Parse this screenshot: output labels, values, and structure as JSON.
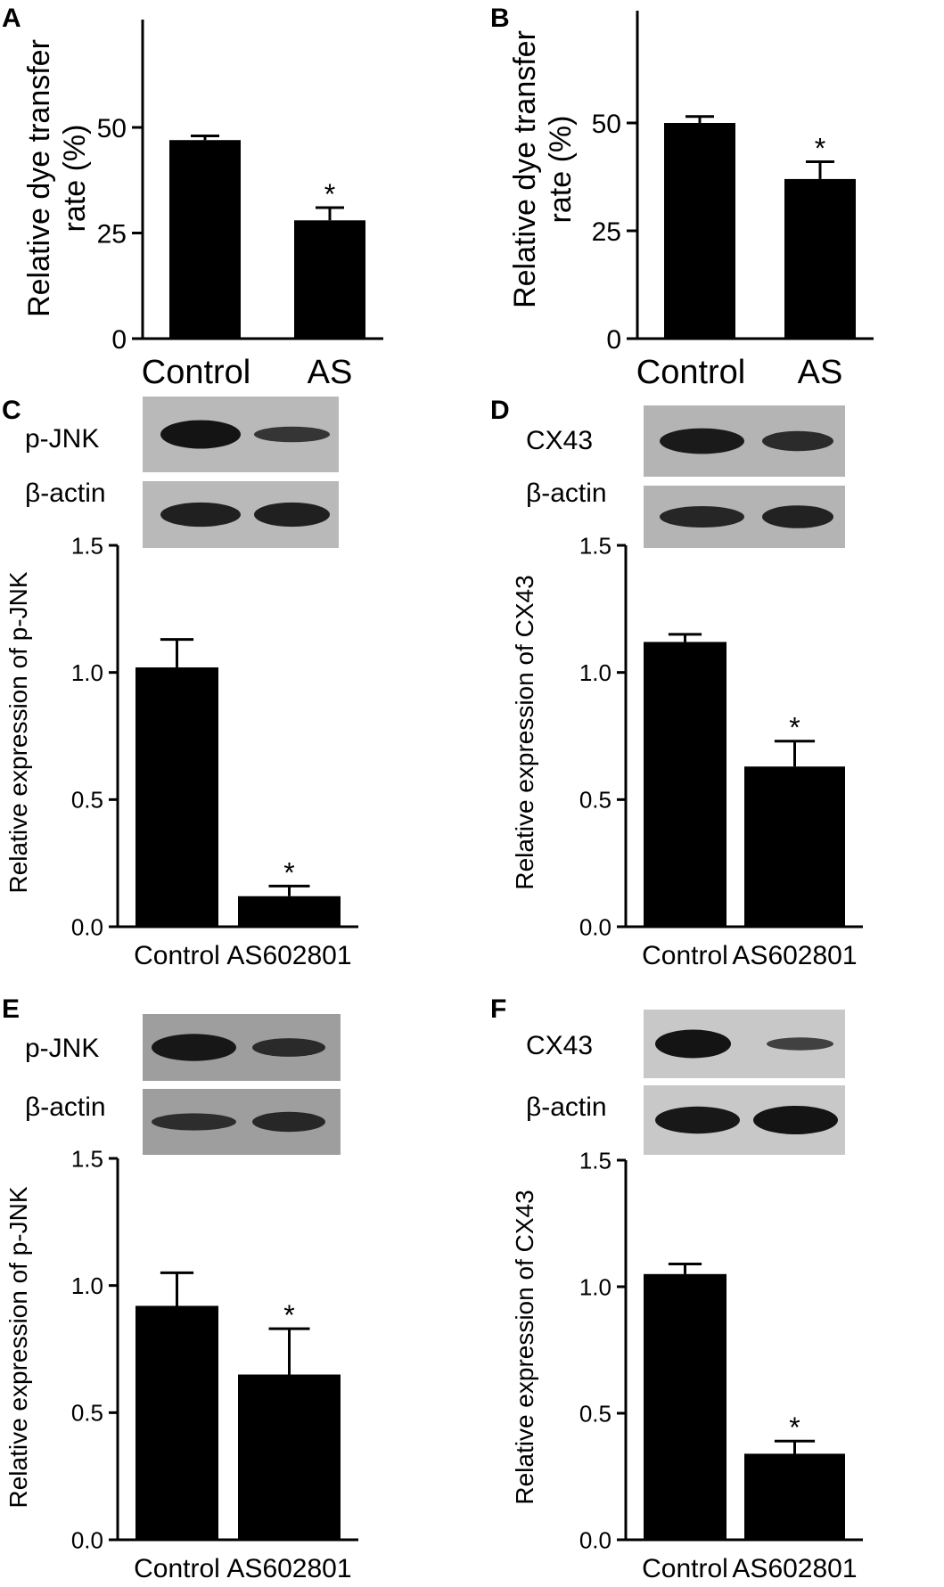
{
  "chart_data": [
    {
      "panel": "A",
      "type": "bar",
      "categories": [
        "Control",
        "AS"
      ],
      "values": [
        47,
        28
      ],
      "errors": [
        1,
        3
      ],
      "significance": [
        "",
        "*"
      ],
      "ylabel": [
        "Relative dye transfer",
        "rate (%)"
      ],
      "ylim": [
        0,
        50
      ],
      "yticks": [
        "0",
        "25",
        "50"
      ]
    },
    {
      "panel": "B",
      "type": "bar",
      "categories": [
        "Control",
        "AS"
      ],
      "values": [
        50,
        37
      ],
      "errors": [
        1.5,
        4
      ],
      "significance": [
        "",
        "*"
      ],
      "ylabel": [
        "Relative dye transfer",
        "rate (%)"
      ],
      "ylim": [
        0,
        50
      ],
      "yticks": [
        "0",
        "25",
        "50"
      ]
    },
    {
      "panel": "C",
      "type": "bar",
      "categories": [
        "Control",
        "AS602801"
      ],
      "values": [
        1.02,
        0.12
      ],
      "errors": [
        0.11,
        0.04
      ],
      "significance": [
        "",
        "*"
      ],
      "ylabel": [
        "Relative expression of p-JNK"
      ],
      "ylim": [
        0,
        1.5
      ],
      "yticks": [
        "0.0",
        "0.5",
        "1.0",
        "1.5"
      ],
      "blot_labels": [
        "p-JNK",
        "β-actin"
      ]
    },
    {
      "panel": "D",
      "type": "bar",
      "categories": [
        "Control",
        "AS602801"
      ],
      "values": [
        1.12,
        0.63
      ],
      "errors": [
        0.03,
        0.1
      ],
      "significance": [
        "",
        "*"
      ],
      "ylabel": [
        "Relative expression of CX43"
      ],
      "ylim": [
        0,
        1.5
      ],
      "yticks": [
        "0.0",
        "0.5",
        "1.0",
        "1.5"
      ],
      "blot_labels": [
        "CX43",
        "β-actin"
      ]
    },
    {
      "panel": "E",
      "type": "bar",
      "categories": [
        "Control",
        "AS602801"
      ],
      "values": [
        0.92,
        0.65
      ],
      "errors": [
        0.13,
        0.18
      ],
      "significance": [
        "",
        "*"
      ],
      "ylabel": [
        "Relative expression of p-JNK"
      ],
      "ylim": [
        0,
        1.5
      ],
      "yticks": [
        "0.0",
        "0.5",
        "1.0",
        "1.5"
      ],
      "blot_labels": [
        "p-JNK",
        "β-actin"
      ]
    },
    {
      "panel": "F",
      "type": "bar",
      "categories": [
        "Control",
        "AS602801"
      ],
      "values": [
        1.05,
        0.34
      ],
      "errors": [
        0.04,
        0.05
      ],
      "significance": [
        "",
        "*"
      ],
      "ylabel": [
        "Relative expression of CX43"
      ],
      "ylim": [
        0,
        1.5
      ],
      "yticks": [
        "0.0",
        "0.5",
        "1.0",
        "1.5"
      ],
      "blot_labels": [
        "CX43",
        "β-actin"
      ]
    }
  ]
}
